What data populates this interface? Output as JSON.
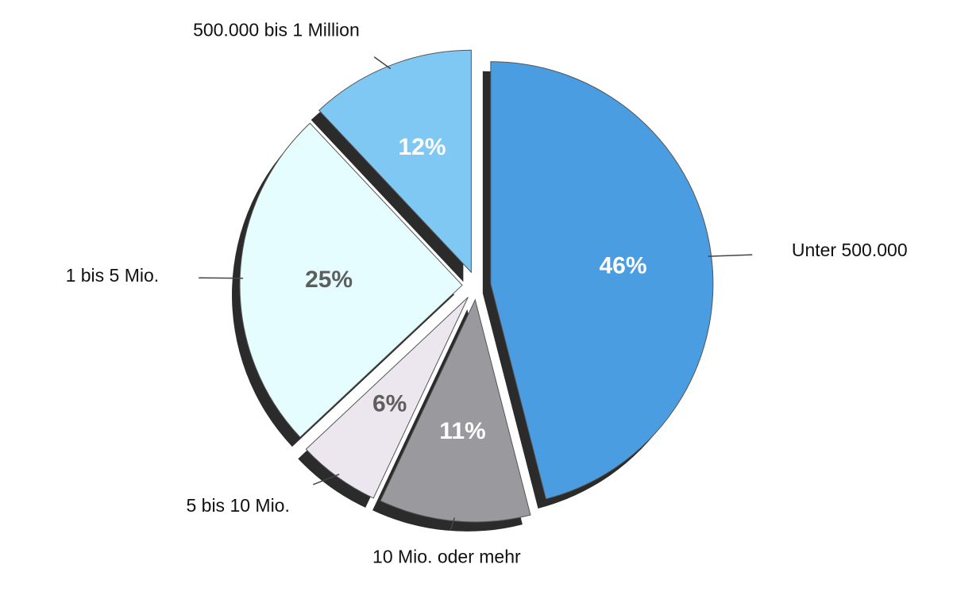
{
  "chart_data": {
    "type": "pie",
    "categories": [
      "Unter 500.000",
      "10 Mio. oder mehr",
      "5 bis 10 Mio.",
      "1 bis 5 Mio.",
      "500.000 bis 1 Million"
    ],
    "values": [
      46,
      11,
      6,
      25,
      12
    ],
    "value_labels": [
      "46%",
      "11%",
      "6%",
      "25%",
      "12%"
    ],
    "colors": [
      "#4a9de0",
      "#9a9a9e",
      "#ece6ee",
      "#e6fdff",
      "#80c8f4"
    ]
  }
}
